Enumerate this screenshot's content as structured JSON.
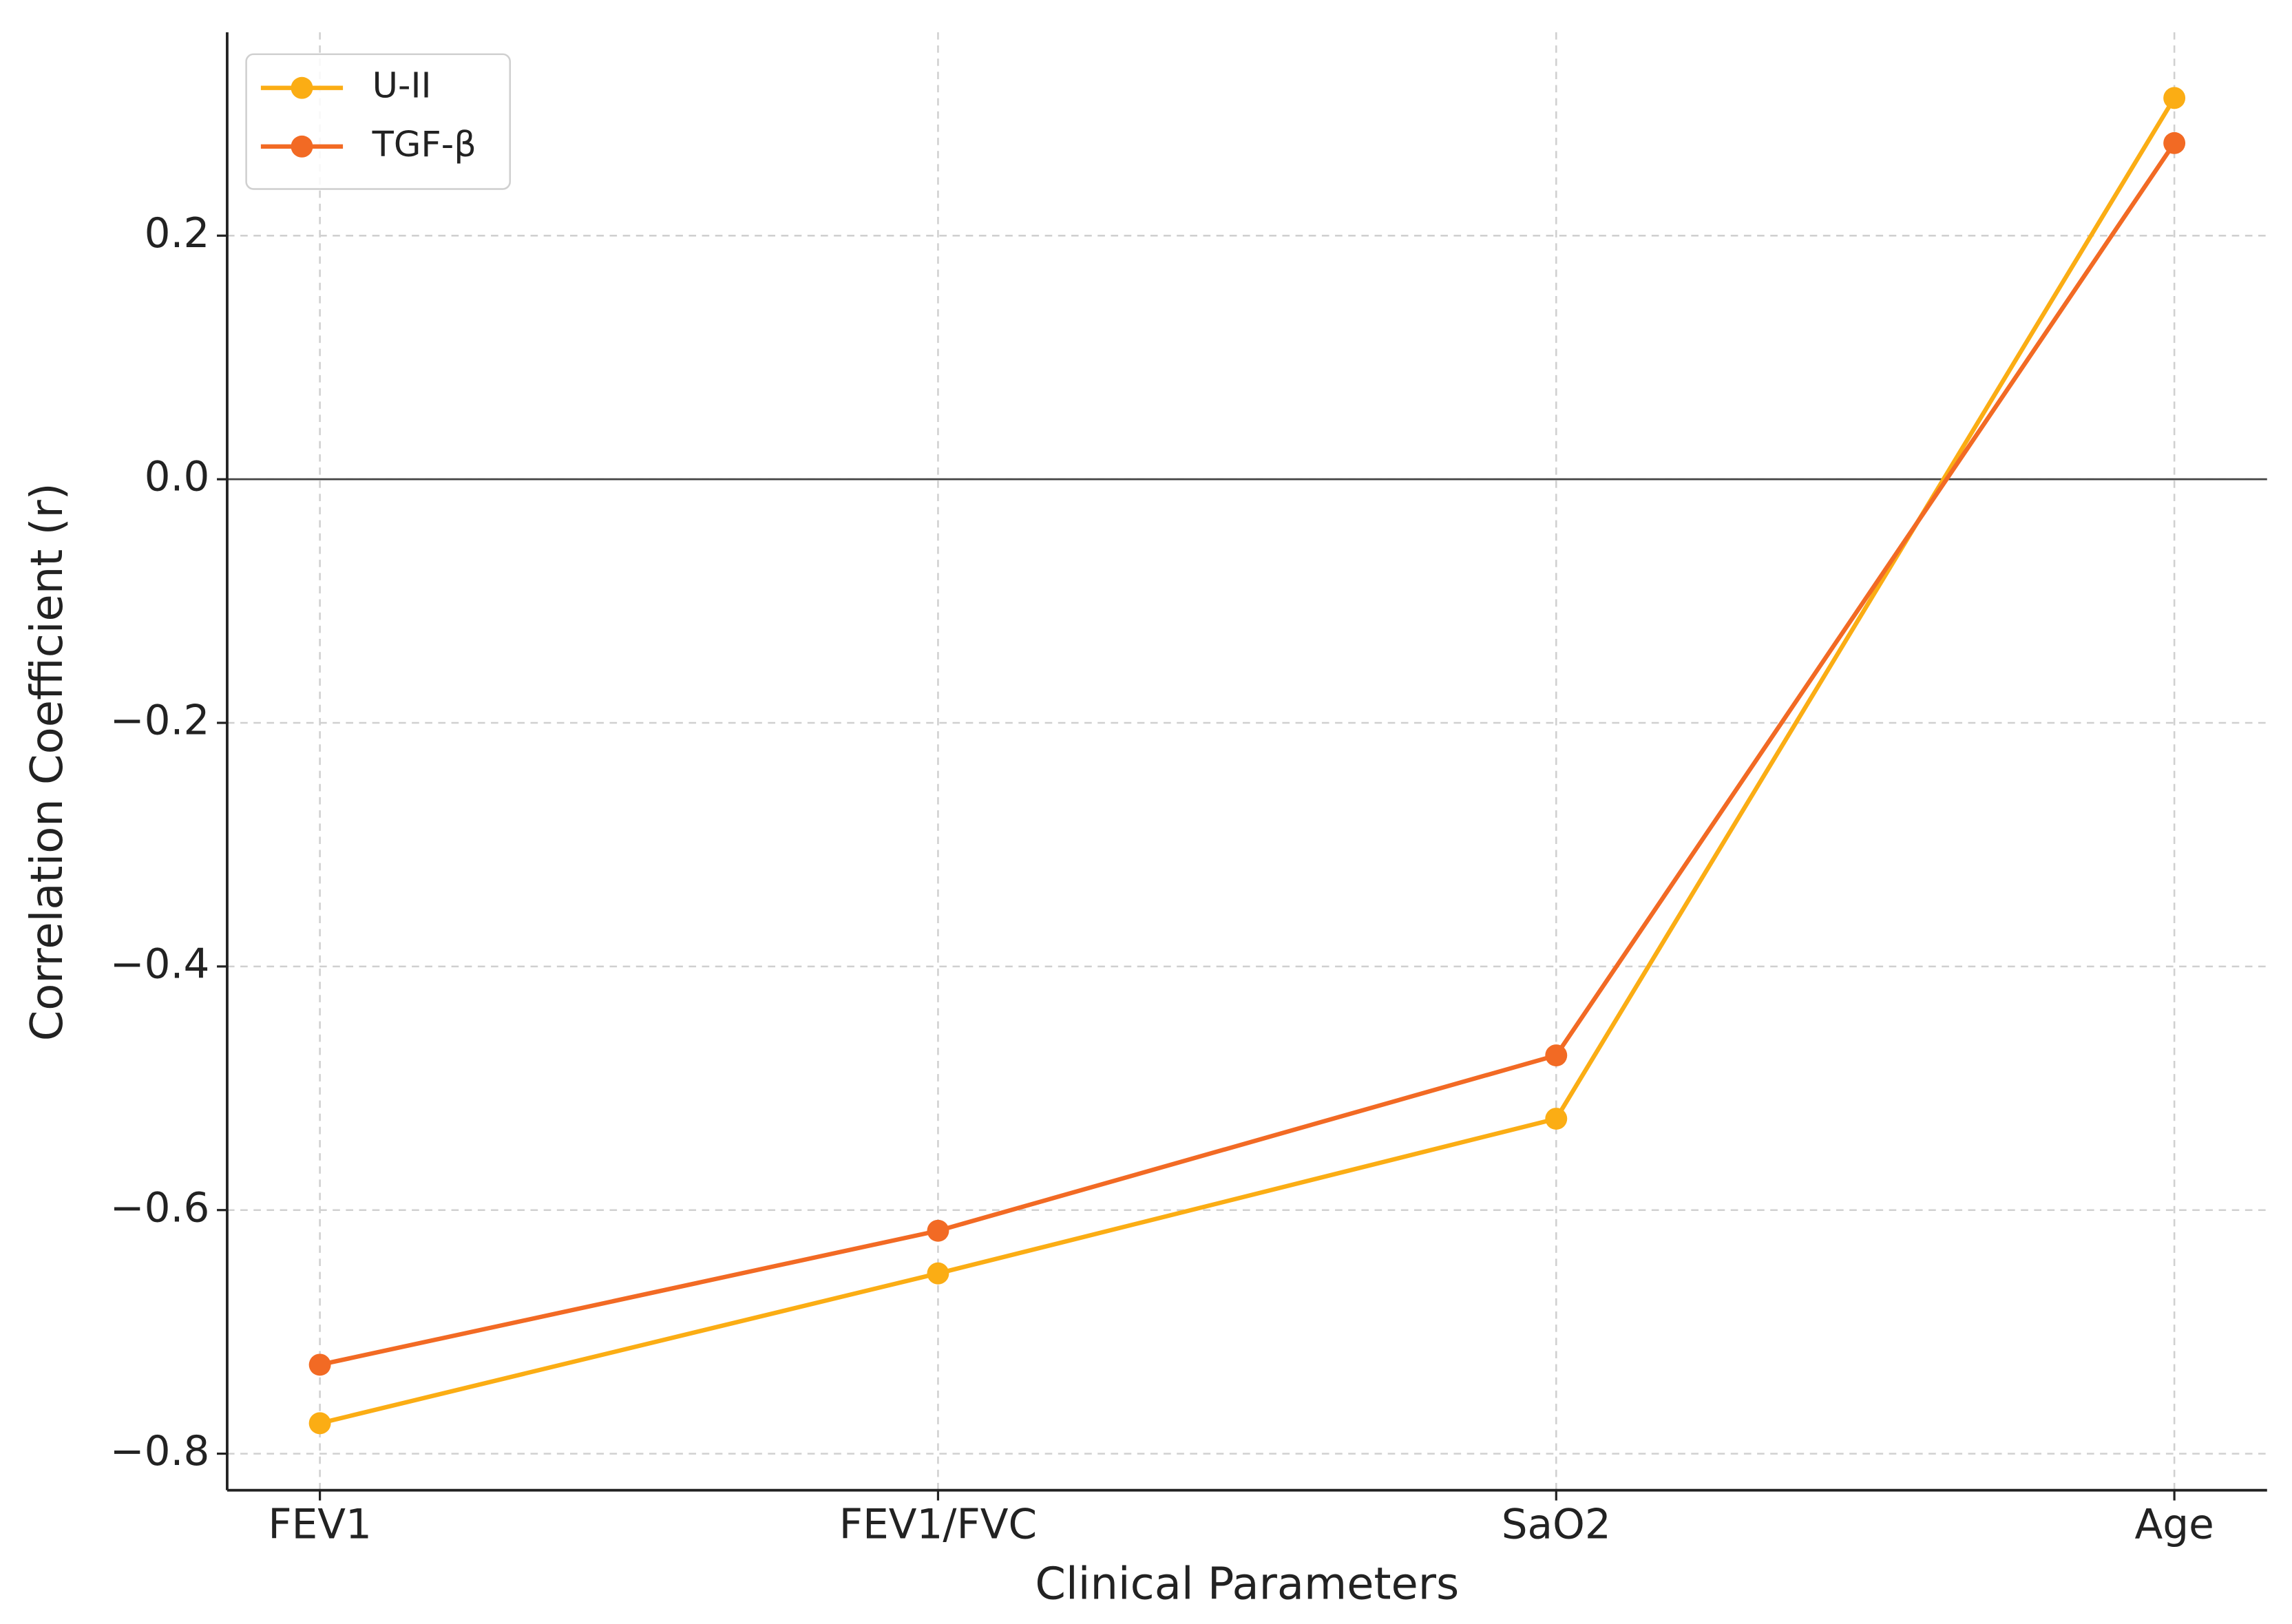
{
  "chart_data": {
    "type": "line",
    "xlabel": "Clinical Parameters",
    "ylabel": "Correlation Coefficient (r)",
    "categories": [
      "FEV1",
      "FEV1/FVC",
      "SaO2",
      "Age"
    ],
    "series": [
      {
        "name": "U-II",
        "color": "#fbad14",
        "values": [
          -0.775,
          -0.652,
          -0.525,
          0.313
        ]
      },
      {
        "name": "TGF-β",
        "color": "#f26a24",
        "values": [
          -0.727,
          -0.617,
          -0.473,
          0.276
        ]
      }
    ],
    "ylim": [
      -0.83,
      0.367
    ],
    "yticks": [
      {
        "value": -0.8,
        "label": "−0.8"
      },
      {
        "value": -0.6,
        "label": "−0.6"
      },
      {
        "value": -0.4,
        "label": "−0.4"
      },
      {
        "value": -0.2,
        "label": "−0.2"
      },
      {
        "value": 0,
        "label": "0.0"
      },
      0.2
    ],
    "reference_line": 0,
    "grid": true,
    "legend": "upper left"
  }
}
